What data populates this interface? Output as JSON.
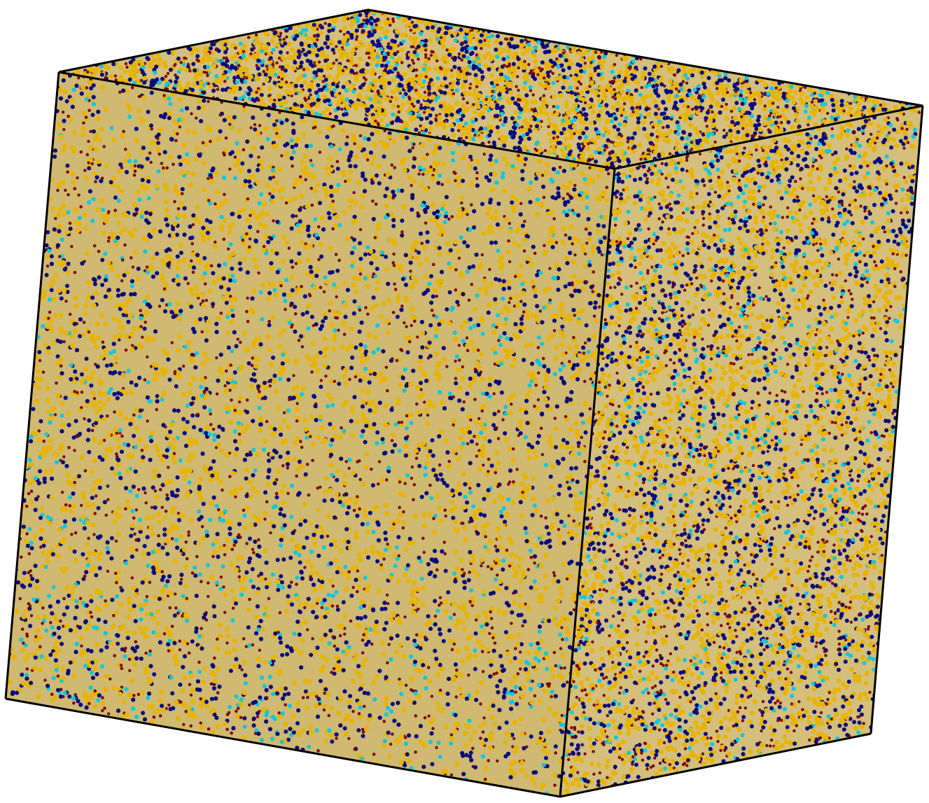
{
  "scene": {
    "subject": "molecular-dynamics-simulation-box",
    "background_color": "#ffffff",
    "box_edge_color": "#000000",
    "particle_types": [
      {
        "name": "gold-bead",
        "color": "#e8b400",
        "share": 0.48
      },
      {
        "name": "maroon-bead",
        "color": "#7a0a0a",
        "share": 0.22
      },
      {
        "name": "navy-bead",
        "color": "#0a0a80",
        "share": 0.22
      },
      {
        "name": "cyan-bead",
        "color": "#10c8dc",
        "share": 0.08
      }
    ]
  }
}
